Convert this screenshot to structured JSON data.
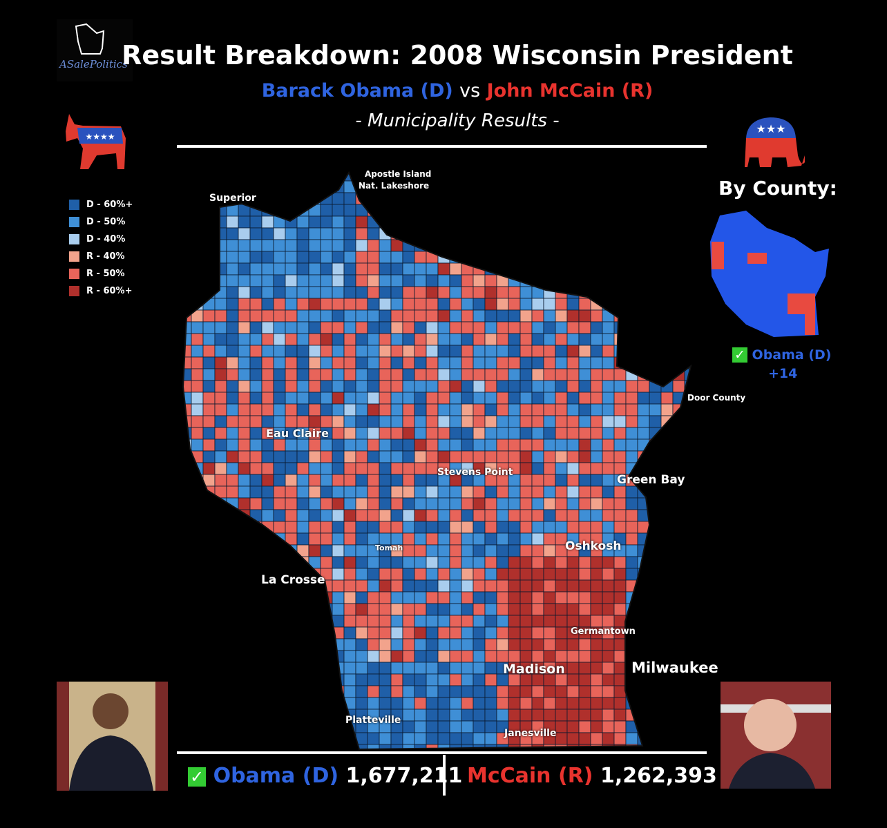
{
  "logo": {
    "text": "ASalePolitics"
  },
  "header": {
    "title": "Result Breakdown: 2008 Wisconsin President",
    "candidate_d": "Barack Obama (D)",
    "vs": "vs",
    "candidate_r": "John McCain (R)",
    "subtitle": "- Municipality Results -"
  },
  "legend": {
    "items": [
      {
        "label": "D - 60%+",
        "color": "#1f5fa8"
      },
      {
        "label": "D - 50%",
        "color": "#3f8fd6"
      },
      {
        "label": "D - 40%",
        "color": "#a9cdee"
      },
      {
        "label": "R - 40%",
        "color": "#f2a38c"
      },
      {
        "label": "R - 50%",
        "color": "#e8645a"
      },
      {
        "label": "R - 60%+",
        "color": "#b0302c"
      }
    ]
  },
  "county_panel": {
    "title": "By County:",
    "winner": "Obama (D)",
    "margin": "+14"
  },
  "map_labels": [
    "Apostle Island",
    "Nat. Lakeshore",
    "Superior",
    "Eau Claire",
    "Stevens Point",
    "Green Bay",
    "Door County",
    "Oshkosh",
    "Tomah",
    "La Crosse",
    "Germantown",
    "Madison",
    "Milwaukee",
    "Platteville",
    "Janesville"
  ],
  "footer": {
    "d_label": "Obama (D)",
    "d_votes": "1,677,211",
    "r_label": "McCain (R)",
    "r_votes": "1,262,393"
  }
}
